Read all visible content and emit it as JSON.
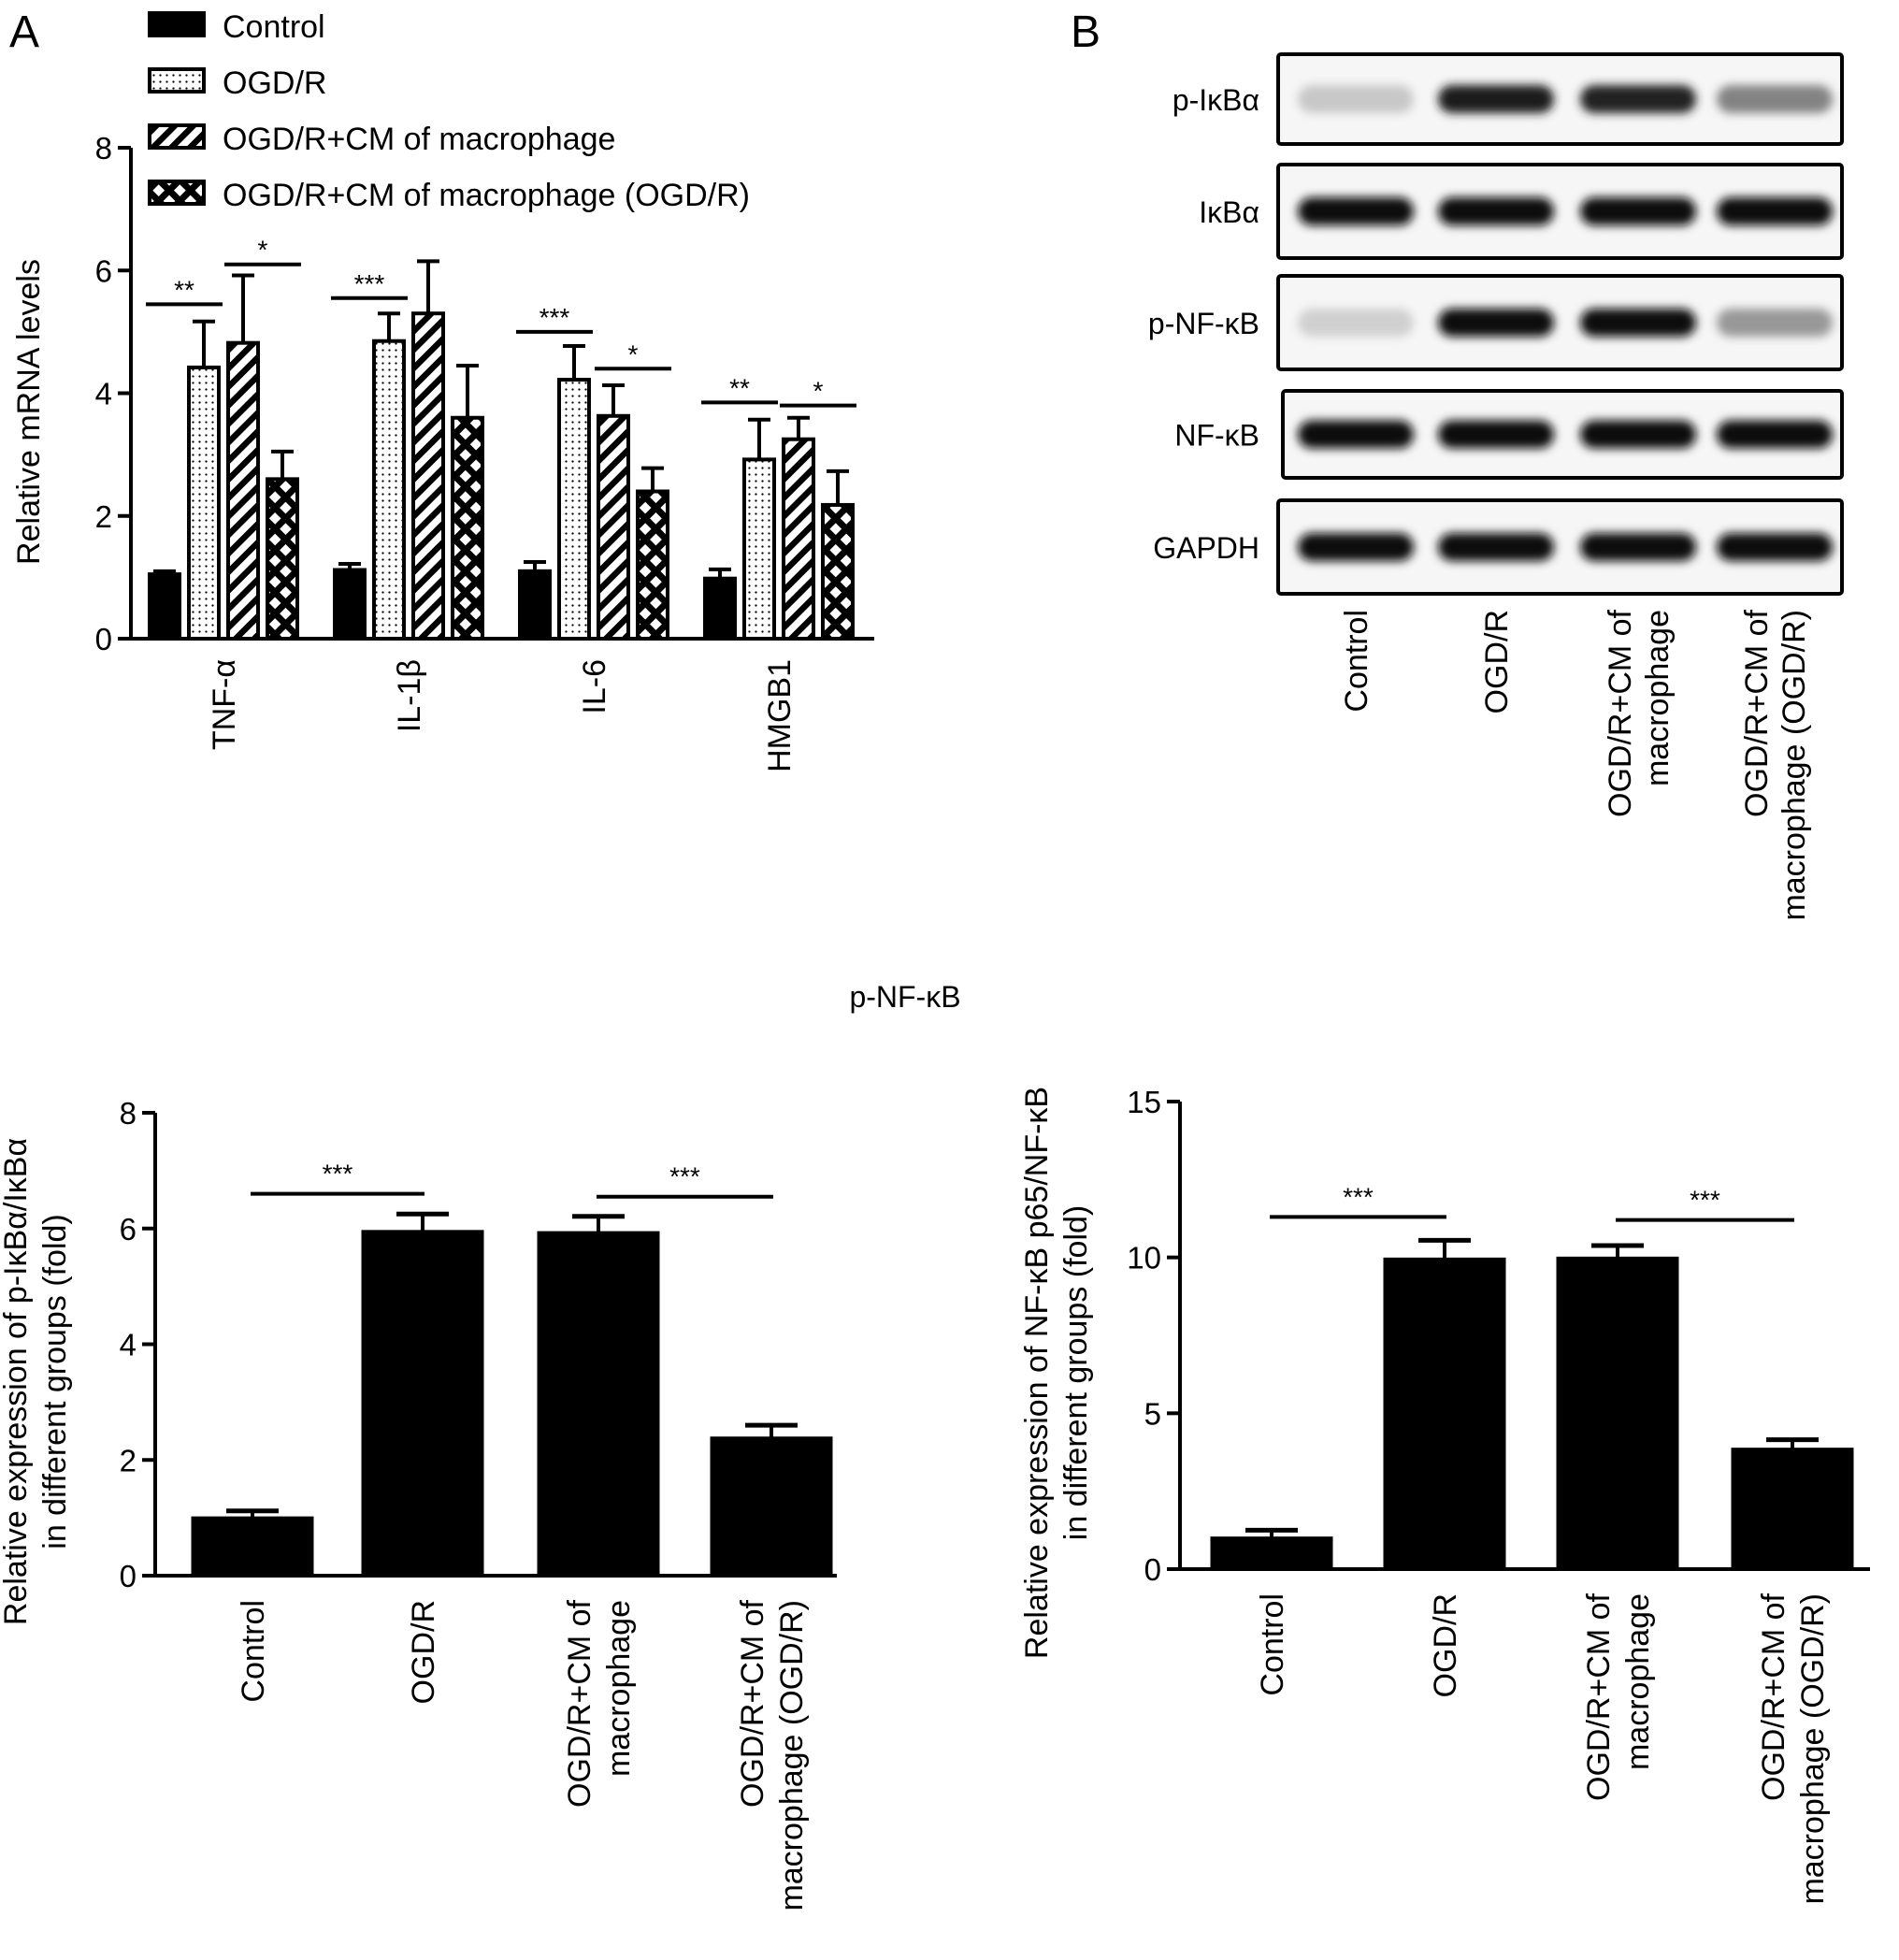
{
  "panels": {
    "a": "A",
    "b": "B"
  },
  "chart_data": [
    {
      "type": "bar",
      "panel": "A",
      "categories": [
        "TNF-α",
        "IL-1β",
        "IL-6",
        "HMGB1"
      ],
      "ylabel": "Relative mRNA levels",
      "ylim": [
        0,
        8
      ],
      "yticks": [
        0,
        2,
        4,
        6,
        8
      ],
      "legend_position": "top",
      "series": [
        {
          "name": "Control",
          "pattern": "solid",
          "values": [
            1.05,
            1.12,
            1.1,
            0.98
          ],
          "errors": [
            0.05,
            0.1,
            0.15,
            0.15
          ]
        },
        {
          "name": "OGD/R",
          "pattern": "dots",
          "values": [
            4.42,
            4.85,
            4.22,
            2.92
          ],
          "errors": [
            0.75,
            0.45,
            0.55,
            0.65
          ]
        },
        {
          "name": "OGD/R+CM of macrophage",
          "pattern": "diagonal",
          "values": [
            4.82,
            5.3,
            3.63,
            3.25
          ],
          "errors": [
            1.1,
            0.85,
            0.5,
            0.35
          ]
        },
        {
          "name": "OGD/R+CM of macrophage (OGD/R)",
          "pattern": "crosshatch",
          "values": [
            2.6,
            3.6,
            2.4,
            2.18
          ],
          "errors": [
            0.45,
            0.85,
            0.38,
            0.55
          ]
        }
      ],
      "significance": [
        {
          "category": 0,
          "from": 0,
          "to": 1,
          "label": "**",
          "y": 5.45
        },
        {
          "category": 0,
          "from": 2,
          "to": 3,
          "label": "*",
          "y": 6.1
        },
        {
          "category": 1,
          "from": 0,
          "to": 1,
          "label": "***",
          "y": 5.55
        },
        {
          "category": 2,
          "from": 0,
          "to": 1,
          "label": "***",
          "y": 5.0
        },
        {
          "category": 2,
          "from": 2,
          "to": 3,
          "label": "*",
          "y": 4.4
        },
        {
          "category": 3,
          "from": 0,
          "to": 1,
          "label": "**",
          "y": 3.85
        },
        {
          "category": 3,
          "from": 2,
          "to": 3,
          "label": "*",
          "y": 3.8
        }
      ]
    },
    {
      "type": "bar",
      "panel": "bottom-left",
      "categories": [
        "Control",
        "OGD/R",
        "OGD/R+CM of macrophage",
        "OGD/R+CM of macrophage (OGD/R)"
      ],
      "category_lines": [
        [
          "Control"
        ],
        [
          "OGD/R"
        ],
        [
          "OGD/R+CM of",
          "macrophage"
        ],
        [
          "OGD/R+CM of",
          "macrophage (OGD/R)"
        ]
      ],
      "ylabel_lines": [
        "Relative expression of p-IκBα/IκBα",
        "in different groups (fold)"
      ],
      "ylim": [
        0,
        8
      ],
      "yticks": [
        0,
        2,
        4,
        6,
        8
      ],
      "values": [
        1.0,
        5.95,
        5.93,
        2.38
      ],
      "errors": [
        0.12,
        0.3,
        0.28,
        0.22
      ],
      "significance": [
        {
          "from": 0,
          "to": 1,
          "label": "***",
          "y": 6.6
        },
        {
          "from": 2,
          "to": 3,
          "label": "***",
          "y": 6.55
        }
      ]
    },
    {
      "type": "bar",
      "panel": "bottom-right",
      "categories": [
        "Control",
        "OGD/R",
        "OGD/R+CM of macrophage",
        "OGD/R+CM of macrophage (OGD/R)"
      ],
      "category_lines": [
        [
          "Control"
        ],
        [
          "OGD/R"
        ],
        [
          "OGD/R+CM of",
          "macrophage"
        ],
        [
          "OGD/R+CM of",
          "macrophage (OGD/R)"
        ]
      ],
      "ylabel_lines": [
        "Relative expression of NF-κB p65/NF-κB",
        "in different groups (fold)"
      ],
      "ylim": [
        0,
        15
      ],
      "yticks": [
        0,
        5,
        10,
        15
      ],
      "values": [
        1.0,
        9.95,
        9.98,
        3.85
      ],
      "errors": [
        0.25,
        0.6,
        0.4,
        0.3
      ],
      "significance": [
        {
          "from": 0,
          "to": 1,
          "label": "***",
          "y": 11.3
        },
        {
          "from": 2,
          "to": 3,
          "label": "***",
          "y": 11.2
        }
      ]
    }
  ],
  "blot": {
    "rows": [
      "p-IκBα",
      "IκBα",
      "p-NF-κB",
      "NF-κB",
      "GAPDH"
    ],
    "intensity": [
      [
        0.12,
        0.95,
        0.9,
        0.45
      ],
      [
        1.0,
        1.0,
        1.0,
        1.0
      ],
      [
        0.08,
        1.0,
        1.0,
        0.35
      ],
      [
        1.0,
        1.0,
        1.0,
        1.0
      ],
      [
        1.0,
        1.0,
        1.0,
        1.0
      ]
    ],
    "lanes": [
      [
        "Control"
      ],
      [
        "OGD/R"
      ],
      [
        "OGD/R+CM of",
        "macrophage"
      ],
      [
        "OGD/R+CM of",
        "macrophage (OGD/R)"
      ]
    ]
  },
  "bottom_title": "p-NF-κB"
}
